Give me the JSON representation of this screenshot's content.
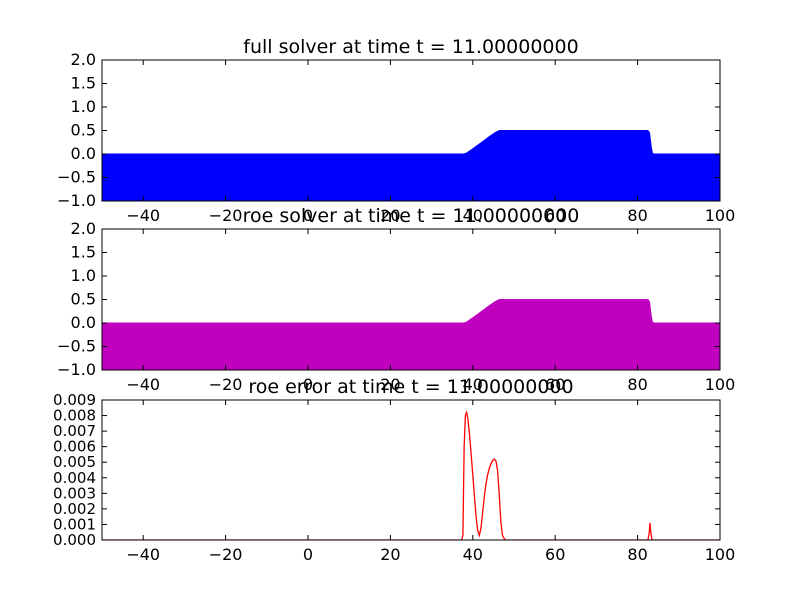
{
  "chart_data": [
    {
      "type": "area",
      "title": "full solver at time t =    11.00000000",
      "xlabel": "",
      "ylabel": "",
      "xlim": [
        -50,
        100
      ],
      "ylim": [
        -1.0,
        2.0
      ],
      "xticks": [
        -40,
        -20,
        0,
        20,
        40,
        60,
        80,
        100
      ],
      "yticks": [
        -1.0,
        -0.5,
        0.0,
        0.5,
        1.0,
        1.5,
        2.0
      ],
      "xtick_labels": [
        "−40",
        "−20",
        "0",
        "20",
        "40",
        "60",
        "80",
        "100"
      ],
      "ytick_labels": [
        "−1.0",
        "−0.5",
        "0.0",
        "0.5",
        "1.0",
        "1.5",
        "2.0"
      ],
      "fill_baseline": -1.0,
      "color": "#0000ff",
      "grid": false,
      "series": [
        {
          "x": [
            -50,
            37.8,
            38.5,
            40,
            42,
            44,
            45.5,
            46.5,
            47,
            82.5,
            82.9,
            83.3,
            83.6,
            84,
            100
          ],
          "y": [
            0.0,
            0.0,
            0.02,
            0.11,
            0.24,
            0.37,
            0.46,
            0.5,
            0.5,
            0.5,
            0.45,
            0.15,
            0.02,
            0.0,
            0.0
          ]
        }
      ]
    },
    {
      "type": "area",
      "title": "roe solver at time t =    11.00000000",
      "xlabel": "",
      "ylabel": "",
      "xlim": [
        -50,
        100
      ],
      "ylim": [
        -1.0,
        2.0
      ],
      "xticks": [
        -40,
        -20,
        0,
        20,
        40,
        60,
        80,
        100
      ],
      "yticks": [
        -1.0,
        -0.5,
        0.0,
        0.5,
        1.0,
        1.5,
        2.0
      ],
      "xtick_labels": [
        "−40",
        "−20",
        "0",
        "20",
        "40",
        "60",
        "80",
        "100"
      ],
      "ytick_labels": [
        "−1.0",
        "−0.5",
        "0.0",
        "0.5",
        "1.0",
        "1.5",
        "2.0"
      ],
      "fill_baseline": -1.0,
      "color": "#bf00bf",
      "grid": false,
      "series": [
        {
          "x": [
            -50,
            37.8,
            38.5,
            40,
            42,
            44,
            45.5,
            46.5,
            47,
            82.5,
            82.9,
            83.3,
            83.6,
            84,
            100
          ],
          "y": [
            0.0,
            0.0,
            0.02,
            0.11,
            0.24,
            0.37,
            0.46,
            0.5,
            0.5,
            0.5,
            0.45,
            0.15,
            0.02,
            0.0,
            0.0
          ]
        }
      ]
    },
    {
      "type": "line",
      "title": "roe error at time t =    11.00000000",
      "xlabel": "",
      "ylabel": "",
      "xlim": [
        -50,
        100
      ],
      "ylim": [
        0.0,
        0.009
      ],
      "xticks": [
        -40,
        -20,
        0,
        20,
        40,
        60,
        80,
        100
      ],
      "yticks": [
        0.0,
        0.001,
        0.002,
        0.003,
        0.004,
        0.005,
        0.006,
        0.007,
        0.008,
        0.009
      ],
      "xtick_labels": [
        "−40",
        "−20",
        "0",
        "20",
        "40",
        "60",
        "80",
        "100"
      ],
      "ytick_labels": [
        "0.000",
        "0.001",
        "0.002",
        "0.003",
        "0.004",
        "0.005",
        "0.006",
        "0.007",
        "0.008",
        "0.009"
      ],
      "color": "#ff0000",
      "grid": false,
      "series": [
        {
          "x": [
            -50,
            37.3,
            37.6,
            37.9,
            38.2,
            38.5,
            38.8,
            39.2,
            39.6,
            40.0,
            40.4,
            40.8,
            41.2,
            41.6,
            42.0,
            42.4,
            42.8,
            43.2,
            43.6,
            44.0,
            44.4,
            44.8,
            45.2,
            45.6,
            46.0,
            46.4,
            46.8,
            47.2,
            47.6,
            48.0,
            82.5,
            82.8,
            83.0,
            83.2,
            83.5,
            100
          ],
          "y": [
            0.0,
            0.0,
            0.0003,
            0.006,
            0.008,
            0.0082,
            0.0078,
            0.0068,
            0.0055,
            0.0042,
            0.0028,
            0.0015,
            0.0006,
            0.0003,
            0.0008,
            0.0018,
            0.0028,
            0.0036,
            0.0042,
            0.0046,
            0.0049,
            0.0051,
            0.0052,
            0.0051,
            0.0045,
            0.003,
            0.0012,
            0.0003,
            0.0001,
            0.0,
            0.0,
            0.0004,
            0.0011,
            0.0005,
            0.0,
            0.0
          ]
        }
      ]
    }
  ]
}
